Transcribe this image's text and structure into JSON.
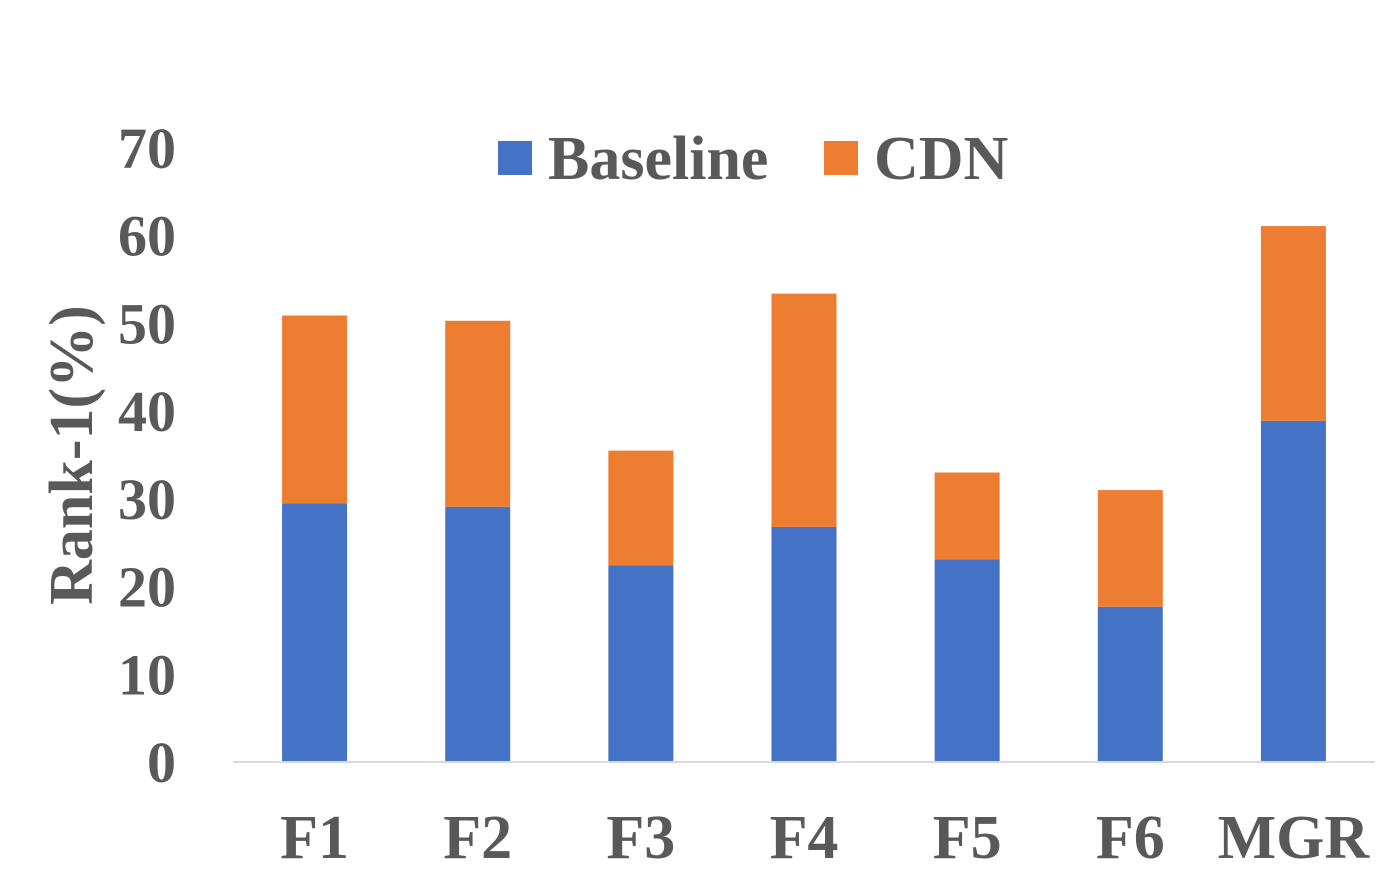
{
  "chart_data": {
    "type": "bar",
    "stacked": true,
    "categories": [
      "F1",
      "F2",
      "F3",
      "F4",
      "F5",
      "F6",
      "MGR"
    ],
    "series": [
      {
        "name": "Baseline",
        "color": "#4472C4",
        "values": [
          29.5,
          29.1,
          22.4,
          26.8,
          23.1,
          17.7,
          38.9
        ]
      },
      {
        "name": "CDN",
        "color": "#ED7D31",
        "values": [
          21.4,
          21.2,
          13.1,
          26.6,
          9.9,
          13.3,
          22.2
        ]
      }
    ],
    "title": "",
    "xlabel": "",
    "ylabel": "Rank-1(%)",
    "ylim": [
      0,
      70
    ],
    "yticks": [
      "0",
      "10",
      "20",
      "30",
      "40",
      "50",
      "60",
      "70"
    ],
    "grid": false,
    "legend": "top-center"
  }
}
